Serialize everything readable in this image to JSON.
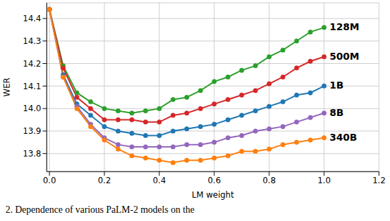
{
  "chart_data": {
    "type": "line",
    "x_label": "LM weight",
    "y_label": "WER",
    "caption": "2. Dependence of various PaLM-2 models on the",
    "x": [
      0,
      0.05,
      0.1,
      0.15,
      0.2,
      0.25,
      0.3,
      0.35,
      0.4,
      0.45,
      0.5,
      0.55,
      0.6,
      0.65,
      0.7,
      0.75,
      0.8,
      0.85,
      0.9,
      0.95,
      1.0
    ],
    "xlim": [
      -0.01,
      1.2
    ],
    "xticks": [
      {
        "value": 0,
        "label": "0.0"
      },
      0.2,
      0.4,
      0.6,
      0.8,
      {
        "value": 1,
        "label": "1.0"
      },
      1.2
    ],
    "ylim": [
      13.72,
      14.47
    ],
    "yticks": [
      13.8,
      13.9,
      {
        "value": 14,
        "label": "14.0"
      },
      14.1,
      14.2,
      14.3,
      14.4
    ],
    "grid": true,
    "marker": "o",
    "line_style": "solid",
    "series": [
      {
        "name": "128M",
        "color": "#2ca02c",
        "values": [
          14.44,
          14.19,
          14.07,
          14.03,
          14.0,
          13.99,
          13.98,
          13.99,
          14.0,
          14.04,
          14.05,
          14.08,
          14.12,
          14.14,
          14.17,
          14.19,
          14.23,
          14.26,
          14.3,
          14.34,
          14.36
        ]
      },
      {
        "name": "500M",
        "color": "#d62728",
        "values": [
          14.44,
          14.18,
          14.05,
          14.0,
          13.95,
          13.95,
          13.95,
          13.94,
          13.94,
          13.97,
          13.98,
          14.0,
          14.02,
          14.04,
          14.06,
          14.08,
          14.11,
          14.14,
          14.18,
          14.21,
          14.23
        ]
      },
      {
        "name": "1B",
        "color": "#1f77b4",
        "values": [
          14.44,
          14.15,
          14.02,
          13.97,
          13.92,
          13.9,
          13.89,
          13.88,
          13.88,
          13.9,
          13.91,
          13.92,
          13.93,
          13.95,
          13.97,
          13.99,
          14.01,
          14.03,
          14.06,
          14.07,
          14.1
        ]
      },
      {
        "name": "8B",
        "color": "#9467bd",
        "values": [
          14.44,
          14.14,
          14.01,
          13.93,
          13.87,
          13.84,
          13.83,
          13.83,
          13.83,
          13.83,
          13.84,
          13.84,
          13.85,
          13.87,
          13.88,
          13.9,
          13.91,
          13.92,
          13.94,
          13.96,
          13.98
        ]
      },
      {
        "name": "340B",
        "color": "#ff7f0e",
        "values": [
          14.44,
          14.14,
          14.0,
          13.92,
          13.86,
          13.82,
          13.79,
          13.78,
          13.77,
          13.76,
          13.77,
          13.77,
          13.78,
          13.79,
          13.81,
          13.81,
          13.82,
          13.84,
          13.85,
          13.86,
          13.87
        ]
      }
    ]
  }
}
